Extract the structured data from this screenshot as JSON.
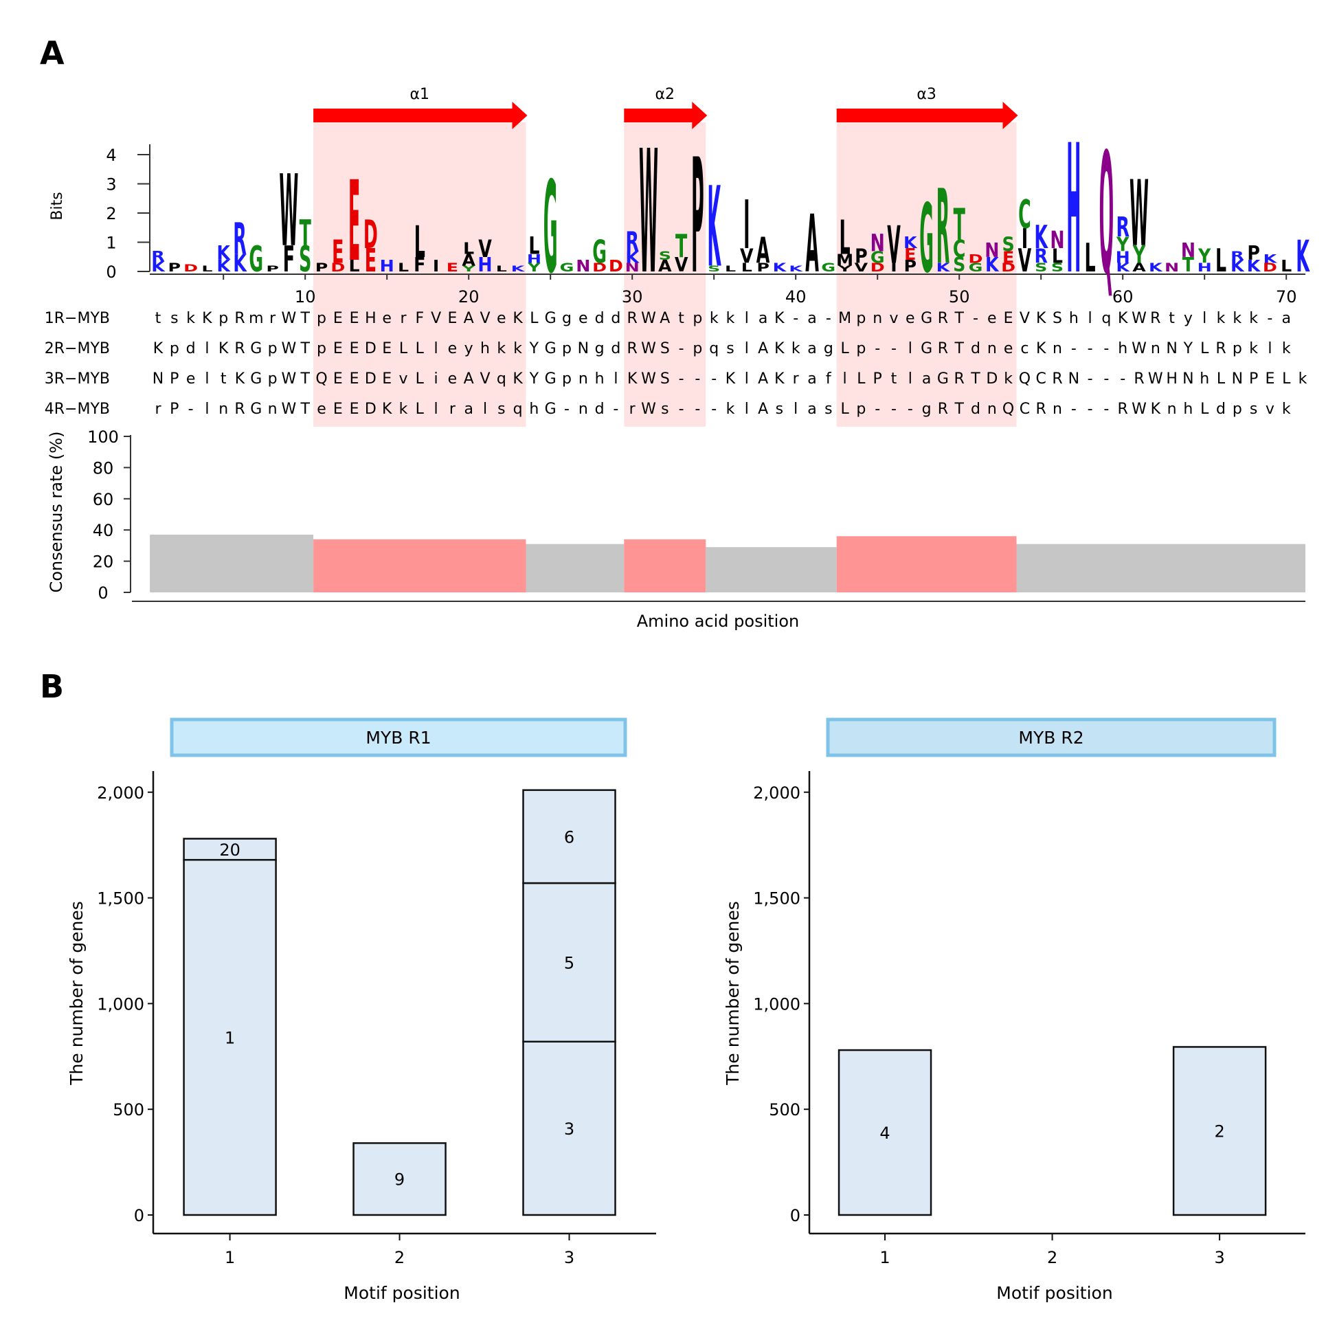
{
  "panel_a": {
    "label": "A",
    "helices": [
      {
        "name": "α1",
        "start": 11,
        "end": 23
      },
      {
        "name": "α2",
        "start": 30,
        "end": 34
      },
      {
        "name": "α3",
        "start": 43,
        "end": 53
      }
    ],
    "logo_ylabel": "Bits",
    "logo_yticks": [
      "0",
      "1",
      "2",
      "3",
      "4"
    ],
    "logo_columns": [
      {
        "pos": 1,
        "stack": [
          [
            "K",
            0.35,
            "#1a1aff"
          ],
          [
            "R",
            0.35,
            "#1a1aff"
          ]
        ]
      },
      {
        "pos": 2,
        "stack": [
          [
            "P",
            0.3,
            "#000000"
          ]
        ]
      },
      {
        "pos": 3,
        "stack": [
          [
            "D",
            0.25,
            "#e60000"
          ]
        ]
      },
      {
        "pos": 4,
        "stack": [
          [
            "L",
            0.2,
            "#000000"
          ]
        ]
      },
      {
        "pos": 5,
        "stack": [
          [
            "K",
            0.4,
            "#1a1aff"
          ],
          [
            "K",
            0.5,
            "#1a1aff"
          ]
        ]
      },
      {
        "pos": 6,
        "stack": [
          [
            "K",
            0.6,
            "#1a1aff"
          ],
          [
            "R",
            1.1,
            "#1a1aff"
          ]
        ]
      },
      {
        "pos": 7,
        "stack": [
          [
            "G",
            0.9,
            "#118811"
          ]
        ]
      },
      {
        "pos": 8,
        "stack": [
          [
            "P",
            0.2,
            "#000000"
          ]
        ]
      },
      {
        "pos": 9,
        "stack": [
          [
            "F",
            0.9,
            "#000000"
          ],
          [
            "W",
            2.5,
            "#000000"
          ]
        ]
      },
      {
        "pos": 10,
        "stack": [
          [
            "S",
            0.9,
            "#118811"
          ],
          [
            "T",
            0.9,
            "#118811"
          ]
        ]
      },
      {
        "pos": 11,
        "stack": [
          [
            "P",
            0.3,
            "#000000"
          ]
        ]
      },
      {
        "pos": 12,
        "stack": [
          [
            "D",
            0.3,
            "#e60000"
          ],
          [
            "E",
            0.8,
            "#e60000"
          ]
        ]
      },
      {
        "pos": 13,
        "stack": [
          [
            "L",
            0.4,
            "#000000"
          ],
          [
            "E",
            2.8,
            "#e60000"
          ]
        ]
      },
      {
        "pos": 14,
        "stack": [
          [
            "E",
            0.8,
            "#e60000"
          ],
          [
            "D",
            1.0,
            "#e60000"
          ]
        ]
      },
      {
        "pos": 15,
        "stack": [
          [
            "H",
            0.4,
            "#1a1aff"
          ]
        ]
      },
      {
        "pos": 16,
        "stack": [
          [
            "L",
            0.3,
            "#000000"
          ]
        ]
      },
      {
        "pos": 17,
        "stack": [
          [
            "F",
            0.5,
            "#000000"
          ],
          [
            "L",
            1.1,
            "#000000"
          ]
        ]
      },
      {
        "pos": 18,
        "stack": [
          [
            "I",
            0.4,
            "#000000"
          ]
        ]
      },
      {
        "pos": 19,
        "stack": [
          [
            "E",
            0.3,
            "#e60000"
          ]
        ]
      },
      {
        "pos": 20,
        "stack": [
          [
            "Y",
            0.2,
            "#118811"
          ],
          [
            "A",
            0.4,
            "#000000"
          ],
          [
            "L",
            0.4,
            "#000000"
          ]
        ]
      },
      {
        "pos": 21,
        "stack": [
          [
            "H",
            0.5,
            "#1a1aff"
          ],
          [
            "V",
            0.6,
            "#000000"
          ]
        ]
      },
      {
        "pos": 22,
        "stack": [
          [
            "L",
            0.2,
            "#000000"
          ]
        ]
      },
      {
        "pos": 23,
        "stack": [
          [
            "K",
            0.2,
            "#1a1aff"
          ]
        ]
      },
      {
        "pos": 24,
        "stack": [
          [
            "Y",
            0.3,
            "#118811"
          ],
          [
            "H",
            0.3,
            "#1a1aff"
          ],
          [
            "L",
            0.6,
            "#000000"
          ]
        ]
      },
      {
        "pos": 25,
        "stack": [
          [
            "G",
            3.2,
            "#118811"
          ]
        ]
      },
      {
        "pos": 26,
        "stack": [
          [
            "G",
            0.3,
            "#118811"
          ]
        ]
      },
      {
        "pos": 27,
        "stack": [
          [
            "N",
            0.4,
            "#8b008b"
          ]
        ]
      },
      {
        "pos": 28,
        "stack": [
          [
            "D",
            0.3,
            "#e60000"
          ],
          [
            "G",
            0.8,
            "#118811"
          ]
        ]
      },
      {
        "pos": 29,
        "stack": [
          [
            "D",
            0.4,
            "#e60000"
          ]
        ]
      },
      {
        "pos": 30,
        "stack": [
          [
            "N",
            0.3,
            "#8b008b"
          ],
          [
            "K",
            0.4,
            "#1a1aff"
          ],
          [
            "R",
            0.7,
            "#1a1aff"
          ]
        ]
      },
      {
        "pos": 31,
        "stack": [
          [
            "W",
            4.3,
            "#000000"
          ]
        ]
      },
      {
        "pos": 32,
        "stack": [
          [
            "A",
            0.4,
            "#000000"
          ],
          [
            "S",
            0.3,
            "#118811"
          ]
        ]
      },
      {
        "pos": 33,
        "stack": [
          [
            "V",
            0.5,
            "#000000"
          ],
          [
            "T",
            0.8,
            "#118811"
          ]
        ]
      },
      {
        "pos": 34,
        "stack": [
          [
            "P",
            4.0,
            "#000000"
          ]
        ]
      },
      {
        "pos": 35,
        "stack": [
          [
            "S",
            0.2,
            "#118811"
          ],
          [
            "K",
            2.8,
            "#1a1aff"
          ]
        ]
      },
      {
        "pos": 36,
        "stack": [
          [
            "L",
            0.2,
            "#000000"
          ]
        ]
      },
      {
        "pos": 37,
        "stack": [
          [
            "L",
            0.3,
            "#000000"
          ],
          [
            "V",
            0.5,
            "#000000"
          ],
          [
            "I",
            1.7,
            "#000000"
          ]
        ]
      },
      {
        "pos": 38,
        "stack": [
          [
            "P",
            0.3,
            "#000000"
          ],
          [
            "A",
            0.9,
            "#000000"
          ]
        ]
      },
      {
        "pos": 39,
        "stack": [
          [
            "K",
            0.3,
            "#1a1aff"
          ]
        ]
      },
      {
        "pos": 40,
        "stack": [
          [
            "K",
            0.2,
            "#1a1aff"
          ]
        ]
      },
      {
        "pos": 41,
        "stack": [
          [
            "A",
            2.0,
            "#000000"
          ]
        ]
      },
      {
        "pos": 42,
        "stack": [
          [
            "G",
            0.3,
            "#118811"
          ]
        ]
      },
      {
        "pos": 43,
        "stack": [
          [
            "Y",
            0.2,
            "#000000"
          ],
          [
            "M",
            0.4,
            "#000000"
          ],
          [
            "L",
            1.2,
            "#000000"
          ]
        ]
      },
      {
        "pos": 44,
        "stack": [
          [
            "V",
            0.3,
            "#000000"
          ],
          [
            "P",
            0.5,
            "#000000"
          ]
        ]
      },
      {
        "pos": 45,
        "stack": [
          [
            "D",
            0.3,
            "#e60000"
          ],
          [
            "G",
            0.4,
            "#118811"
          ],
          [
            "N",
            0.6,
            "#8b008b"
          ]
        ]
      },
      {
        "pos": 46,
        "stack": [
          [
            "I",
            0.3,
            "#000000"
          ],
          [
            "V",
            1.3,
            "#000000"
          ]
        ]
      },
      {
        "pos": 47,
        "stack": [
          [
            "P",
            0.4,
            "#000000"
          ],
          [
            "E",
            0.4,
            "#e60000"
          ],
          [
            "K",
            0.4,
            "#1a1aff"
          ]
        ]
      },
      {
        "pos": 48,
        "stack": [
          [
            "G",
            2.4,
            "#118811"
          ]
        ]
      },
      {
        "pos": 49,
        "stack": [
          [
            "K",
            0.3,
            "#1a1aff"
          ],
          [
            "R",
            2.6,
            "#118811"
          ]
        ]
      },
      {
        "pos": 50,
        "stack": [
          [
            "S",
            0.5,
            "#118811"
          ],
          [
            "C",
            0.6,
            "#118811"
          ],
          [
            "T",
            1.1,
            "#118811"
          ]
        ]
      },
      {
        "pos": 51,
        "stack": [
          [
            "G",
            0.3,
            "#118811"
          ],
          [
            "D",
            0.3,
            "#e60000"
          ]
        ]
      },
      {
        "pos": 52,
        "stack": [
          [
            "K",
            0.5,
            "#1a1aff"
          ],
          [
            "N",
            0.5,
            "#8b008b"
          ]
        ]
      },
      {
        "pos": 53,
        "stack": [
          [
            "D",
            0.3,
            "#e60000"
          ],
          [
            "E",
            0.4,
            "#e60000"
          ],
          [
            "S",
            0.5,
            "#118811"
          ]
        ]
      },
      {
        "pos": 54,
        "stack": [
          [
            "V",
            0.8,
            "#000000"
          ],
          [
            "I",
            0.7,
            "#000000"
          ],
          [
            "C",
            1.0,
            "#118811"
          ]
        ]
      },
      {
        "pos": 55,
        "stack": [
          [
            "S",
            0.3,
            "#118811"
          ],
          [
            "R",
            0.5,
            "#1a1aff"
          ],
          [
            "K",
            0.8,
            "#1a1aff"
          ]
        ]
      },
      {
        "pos": 56,
        "stack": [
          [
            "S",
            0.3,
            "#118811"
          ],
          [
            "L",
            0.5,
            "#000000"
          ],
          [
            "N",
            0.6,
            "#8b008b"
          ]
        ]
      },
      {
        "pos": 57,
        "stack": [
          [
            "H",
            4.5,
            "#1a1aff"
          ]
        ]
      },
      {
        "pos": 58,
        "stack": [
          [
            "L",
            1.0,
            "#000000"
          ]
        ]
      },
      {
        "pos": 59,
        "stack": [
          [
            "Q",
            4.2,
            "#8b008b"
          ]
        ]
      },
      {
        "pos": 60,
        "stack": [
          [
            "K",
            0.3,
            "#1a1aff"
          ],
          [
            "H",
            0.4,
            "#1a1aff"
          ],
          [
            "Y",
            0.5,
            "#118811"
          ],
          [
            "R",
            0.7,
            "#1a1aff"
          ]
        ]
      },
      {
        "pos": 61,
        "stack": [
          [
            "A",
            0.3,
            "#000000"
          ],
          [
            "Y",
            0.6,
            "#118811"
          ],
          [
            "W",
            2.3,
            "#000000"
          ]
        ]
      },
      {
        "pos": 62,
        "stack": [
          [
            "K",
            0.3,
            "#1a1aff"
          ]
        ]
      },
      {
        "pos": 63,
        "stack": [
          [
            "N",
            0.3,
            "#8b008b"
          ]
        ]
      },
      {
        "pos": 64,
        "stack": [
          [
            "T",
            0.5,
            "#118811"
          ],
          [
            "N",
            0.5,
            "#8b008b"
          ]
        ]
      },
      {
        "pos": 65,
        "stack": [
          [
            "H",
            0.3,
            "#1a1aff"
          ],
          [
            "Y",
            0.5,
            "#118811"
          ]
        ]
      },
      {
        "pos": 66,
        "stack": [
          [
            "L",
            0.8,
            "#000000"
          ]
        ]
      },
      {
        "pos": 67,
        "stack": [
          [
            "K",
            0.4,
            "#1a1aff"
          ],
          [
            "R",
            0.3,
            "#1a1aff"
          ]
        ]
      },
      {
        "pos": 68,
        "stack": [
          [
            "K",
            0.4,
            "#1a1aff"
          ],
          [
            "P",
            0.5,
            "#000000"
          ]
        ]
      },
      {
        "pos": 69,
        "stack": [
          [
            "D",
            0.3,
            "#e60000"
          ],
          [
            "K",
            0.3,
            "#1a1aff"
          ]
        ]
      },
      {
        "pos": 70,
        "stack": [
          [
            "L",
            0.4,
            "#000000"
          ]
        ]
      },
      {
        "pos": 71,
        "stack": [
          [
            "K",
            1.1,
            "#1a1aff"
          ]
        ]
      }
    ],
    "x_ticks": [
      "10",
      "20",
      "30",
      "40",
      "50",
      "60",
      "70"
    ],
    "sequences": [
      {
        "name": "1R−MYB",
        "residues": "tskKpRmrWTpEEHerFVEAVeKLGgeddRWAtpkklaK-a-MpnveGRT-eEVKShlqKWRtylkkk-a"
      },
      {
        "name": "2R−MYB",
        "residues": "KpdlKRGpWTpEEDELLleyhkkYGpNgdRWS-pqslAKkagLp--lGRTdnecKn---hWnNYLRpklk"
      },
      {
        "name": "3R−MYB",
        "residues": "NPeltKGpWTQEEDEvLieAVqKYGpnhlKWS---KlAKraflLPtlaGRTDkQCRN---RWHNhLNPELk"
      },
      {
        "name": "4R−MYB",
        "residues": "rP-lnRGnWTeEEDKkLlralsqhG-nd-rWs---klAslasLp---gRTdnQCRn---RWKnhLdpsvk"
      }
    ],
    "consensus_ylabel": "Consensus rate (%)",
    "consensus_yticks": [
      "0",
      "20",
      "40",
      "60",
      "80",
      "100"
    ],
    "xlabel": "Amino acid position"
  },
  "panel_b": {
    "label": "B",
    "xlabel": "Motif position",
    "ylabel": "The number of genes",
    "yticks": [
      "0",
      "500",
      "1,000",
      "1,500",
      "2,000"
    ],
    "xticks": [
      "1",
      "2",
      "3"
    ]
  },
  "chart_data": [
    {
      "type": "bar",
      "title": "",
      "xlabel": "Amino acid position",
      "ylabel": "Consensus rate (%)",
      "ylim": [
        0,
        100
      ],
      "segments": [
        {
          "start": 1,
          "end": 10,
          "value": 37,
          "region": "loop"
        },
        {
          "start": 11,
          "end": 23,
          "value": 34,
          "region": "α1"
        },
        {
          "start": 24,
          "end": 29,
          "value": 31,
          "region": "loop"
        },
        {
          "start": 30,
          "end": 34,
          "value": 34,
          "region": "α2"
        },
        {
          "start": 35,
          "end": 42,
          "value": 29,
          "region": "loop"
        },
        {
          "start": 43,
          "end": 53,
          "value": 36,
          "region": "α3"
        },
        {
          "start": 54,
          "end": 71,
          "value": 31,
          "region": "loop"
        }
      ],
      "colors": {
        "helix": "#ff9494",
        "loop": "#c6c6c6"
      }
    },
    {
      "type": "bar",
      "title": "MYB R1",
      "xlabel": "Motif position",
      "ylabel": "The number of genes",
      "ylim": [
        0,
        2100
      ],
      "categories": [
        "1",
        "2",
        "3"
      ],
      "stacks": [
        [
          {
            "label": "1",
            "value": 1680
          },
          {
            "label": "20",
            "value": 100
          }
        ],
        [
          {
            "label": "9",
            "value": 340
          }
        ],
        [
          {
            "label": "3",
            "value": 820
          },
          {
            "label": "5",
            "value": 750
          },
          {
            "label": "6",
            "value": 440
          }
        ]
      ]
    },
    {
      "type": "bar",
      "title": "MYB R2",
      "xlabel": "Motif position",
      "ylabel": "The number of genes",
      "ylim": [
        0,
        2100
      ],
      "categories": [
        "1",
        "2",
        "3"
      ],
      "stacks": [
        [
          {
            "label": "4",
            "value": 780
          }
        ],
        [],
        [
          {
            "label": "2",
            "value": 795
          }
        ]
      ]
    }
  ]
}
